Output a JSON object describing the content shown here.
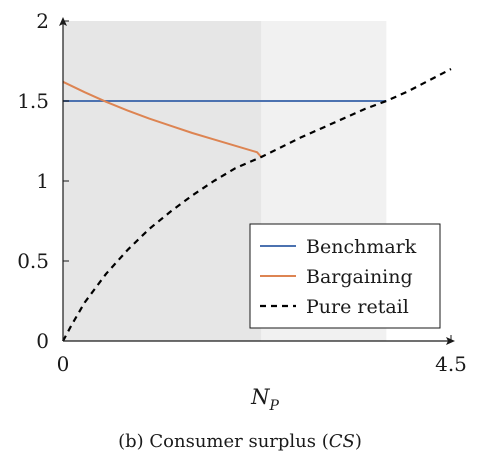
{
  "chart_data": {
    "type": "line",
    "caption_prefix": "(b) Consumer surplus (",
    "caption_symbol": "CS",
    "caption_suffix": ")",
    "xlabel_main": "N",
    "xlabel_sub": "P",
    "ylabel": "",
    "xlim": [
      0,
      4.5
    ],
    "ylim": [
      0,
      2
    ],
    "x_ticks": [
      {
        "value": 0,
        "label": "0"
      },
      {
        "value": 4.5,
        "label": "4.5"
      }
    ],
    "y_ticks": [
      {
        "value": 0,
        "label": "0"
      },
      {
        "value": 0.5,
        "label": "0.5"
      },
      {
        "value": 1,
        "label": "1"
      },
      {
        "value": 1.5,
        "label": "1.5"
      },
      {
        "value": 2,
        "label": "2"
      }
    ],
    "shaded_regions": [
      {
        "x": [
          0,
          2.3
        ],
        "color": "#e6e6e6"
      },
      {
        "x": [
          2.3,
          3.75
        ],
        "color": "#f1f1f1"
      }
    ],
    "legend_position": "bottom-right",
    "series": [
      {
        "name": "Benchmark",
        "color": "#4c72b0",
        "dash": "solid",
        "x": [
          0,
          3.75
        ],
        "y": [
          1.5,
          1.5
        ]
      },
      {
        "name": "Bargaining",
        "color": "#dd8452",
        "dash": "solid",
        "x": [
          0,
          0.25,
          0.5,
          0.75,
          1.0,
          1.25,
          1.5,
          1.75,
          2.0,
          2.25,
          2.3
        ],
        "y": [
          1.62,
          1.555,
          1.495,
          1.44,
          1.39,
          1.345,
          1.3,
          1.26,
          1.22,
          1.18,
          1.15
        ]
      },
      {
        "name": "Pure retail",
        "color": "#000000",
        "dash": "dashed",
        "x": [
          0,
          0.1,
          0.25,
          0.5,
          0.75,
          1.0,
          1.25,
          1.5,
          1.75,
          2.0,
          2.3,
          2.75,
          3.0,
          3.5,
          3.75,
          4.0,
          4.5
        ],
        "y": [
          0,
          0.1,
          0.24,
          0.42,
          0.57,
          0.7,
          0.81,
          0.91,
          1.0,
          1.08,
          1.15,
          1.27,
          1.33,
          1.45,
          1.5,
          1.56,
          1.7
        ]
      }
    ]
  }
}
